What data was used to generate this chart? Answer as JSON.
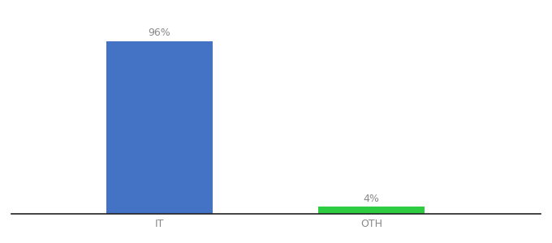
{
  "categories": [
    "IT",
    "OTH"
  ],
  "values": [
    96,
    4
  ],
  "bar_colors": [
    "#4472c4",
    "#2ecc40"
  ],
  "label_texts": [
    "96%",
    "4%"
  ],
  "background_color": "#ffffff",
  "ylim": [
    0,
    108
  ],
  "bar_width": 0.5,
  "label_fontsize": 9,
  "tick_fontsize": 9,
  "label_color": "#888888",
  "tick_color": "#888888",
  "spine_color": "#222222"
}
